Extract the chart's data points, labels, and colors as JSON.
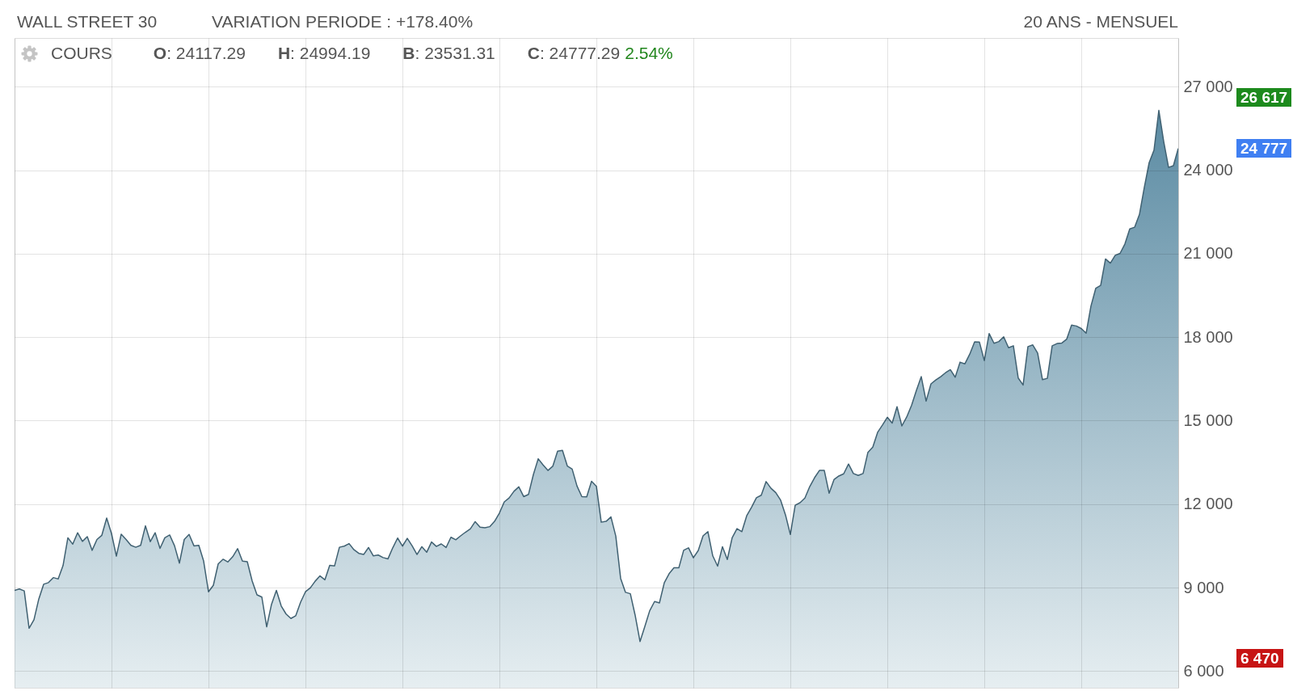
{
  "chart_data": {
    "type": "area",
    "title": "WALL STREET 30",
    "subtitle": "VARIATION PERIODE : +178.40%",
    "categories": [
      null,
      null,
      null,
      null,
      null,
      null,
      null,
      null,
      null,
      null,
      null,
      null,
      null,
      null,
      null,
      null,
      null,
      null,
      null,
      null,
      null,
      null,
      null,
      null,
      null,
      null,
      null,
      null,
      null,
      null,
      null,
      null,
      null,
      null,
      null,
      null,
      null,
      null,
      null,
      null,
      null,
      null,
      null,
      null,
      null,
      null,
      null,
      null,
      null,
      null,
      null,
      null,
      null,
      null,
      null,
      null,
      null,
      null,
      null,
      null,
      null,
      null,
      null,
      null,
      null,
      null,
      null,
      null,
      null,
      null,
      null,
      null,
      null,
      null,
      null,
      null,
      null,
      null,
      null,
      null,
      null,
      null,
      null,
      null,
      null,
      null,
      null,
      null,
      null,
      null,
      null,
      null,
      null,
      null,
      null,
      null,
      null,
      null,
      null,
      null,
      null,
      null,
      null,
      null,
      null,
      null,
      null,
      null,
      null,
      null,
      null,
      null,
      null,
      null,
      null,
      null,
      null,
      null,
      null,
      null,
      null,
      null,
      null,
      null,
      null,
      null,
      null,
      null,
      null,
      null,
      null,
      null,
      null,
      null,
      null,
      null,
      null,
      null,
      null,
      null,
      null,
      null,
      null,
      null,
      null,
      null,
      null,
      null,
      null,
      null,
      null,
      null,
      null,
      null,
      null,
      null,
      null,
      null,
      null,
      null,
      null,
      null,
      null,
      null,
      null,
      null,
      null,
      null,
      null,
      null,
      null,
      null,
      null,
      null,
      null,
      null,
      null,
      null,
      null,
      null,
      null,
      null,
      null,
      null,
      null,
      null,
      null,
      null,
      null,
      null,
      null,
      null,
      null,
      null,
      null,
      null,
      null,
      null,
      null,
      null,
      null,
      null,
      null,
      null,
      null,
      null,
      null,
      null,
      null,
      null,
      null,
      null,
      null,
      null,
      null,
      null,
      null,
      null,
      null,
      null,
      null,
      null,
      null,
      null,
      null,
      null,
      null,
      null,
      null,
      null,
      null,
      null,
      null,
      null,
      null,
      null,
      null,
      null,
      null,
      null,
      null
    ],
    "values": [
      8900,
      8950,
      8880,
      7540,
      7840,
      8590,
      9120,
      9180,
      9360,
      9310,
      9790,
      10790,
      10560,
      10970,
      10660,
      10830,
      10340,
      10730,
      10880,
      11500,
      10940,
      10130,
      10920,
      10730,
      10520,
      10450,
      10520,
      11220,
      10650,
      10970,
      10410,
      10790,
      10890,
      10500,
      9880,
      10730,
      10910,
      10500,
      10520,
      9950,
      8850,
      9080,
      9850,
      10020,
      9920,
      10110,
      10400,
      9950,
      9930,
      9240,
      8740,
      8660,
      7590,
      8400,
      8900,
      8340,
      8050,
      7890,
      7990,
      8480,
      8850,
      8990,
      9230,
      9420,
      9280,
      9800,
      9780,
      10450,
      10490,
      10580,
      10360,
      10230,
      10190,
      10440,
      10140,
      10170,
      10080,
      10030,
      10430,
      10780,
      10490,
      10770,
      10500,
      10190,
      10470,
      10270,
      10640,
      10480,
      10570,
      10440,
      10810,
      10720,
      10860,
      10990,
      11110,
      11370,
      11170,
      11150,
      11190,
      11380,
      11680,
      12080,
      12220,
      12460,
      12620,
      12270,
      12350,
      13060,
      13630,
      13410,
      13210,
      13360,
      13900,
      13930,
      13370,
      13260,
      12650,
      12270,
      12260,
      12820,
      12640,
      11350,
      11380,
      11540,
      10850,
      9330,
      8830,
      8780,
      8000,
      7060,
      7610,
      8170,
      8500,
      8450,
      9170,
      9500,
      9710,
      9710,
      10340,
      10430,
      10070,
      10330,
      10860,
      11010,
      10140,
      9770,
      10470,
      10010,
      10790,
      11120,
      11010,
      11580,
      11890,
      12230,
      12320,
      12810,
      12570,
      12410,
      12140,
      11610,
      10910,
      11960,
      12050,
      12220,
      12630,
      12950,
      13210,
      13210,
      12390,
      12880,
      13010,
      13090,
      13440,
      13100,
      13030,
      13100,
      13860,
      14050,
      14580,
      14840,
      15120,
      14910,
      15500,
      14810,
      15130,
      15550,
      16090,
      16580,
      15700,
      16320,
      16460,
      16580,
      16720,
      16830,
      16560,
      17100,
      17040,
      17390,
      17830,
      17820,
      17160,
      18130,
      17780,
      17840,
      18010,
      17620,
      17690,
      16530,
      16280,
      17660,
      17720,
      17430,
      16470,
      16520,
      17690,
      17770,
      17790,
      17930,
      18430,
      18400,
      18310,
      18140,
      19120,
      19760,
      19860,
      20810,
      20660,
      20940,
      21010,
      21350,
      21890,
      21950,
      22410,
      23380,
      24270,
      24720,
      26150,
      25030,
      24100,
      24160,
      24780
    ],
    "color": "#5b8ba3",
    "ylim": [
      5400,
      28750
    ],
    "yticks": [
      {
        "value": 6000,
        "label": "6 000"
      },
      {
        "value": 9000,
        "label": "9 000"
      },
      {
        "value": 12000,
        "label": "12 000"
      },
      {
        "value": 15000,
        "label": "15 000"
      },
      {
        "value": 18000,
        "label": "18 000"
      },
      {
        "value": 21000,
        "label": "21 000"
      },
      {
        "value": 24000,
        "label": "24 000"
      },
      {
        "value": 27000,
        "label": "27 000"
      }
    ],
    "grid": true,
    "annotations": [
      "20 ANS - MENSUEL",
      "COURS",
      "O: 24117.29",
      "H: 24994.19",
      "B: 23531.31",
      "C: 24777.29",
      "2.54%",
      "26 617",
      "24 777",
      "6 470"
    ]
  }
}
